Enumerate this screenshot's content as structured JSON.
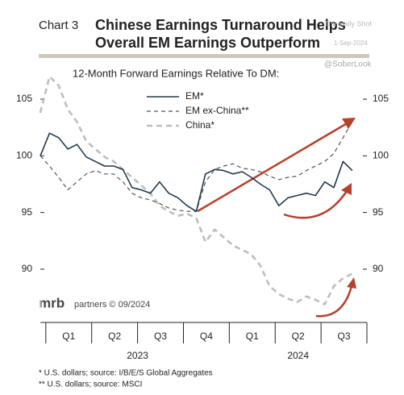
{
  "chart_data": {
    "type": "line",
    "chart_label": "Chart 3",
    "title": "Chinese Earnings Turnaround Helps",
    "title_line2": "Overall EM Earnings Outperform",
    "subtitle": "12-Month Forward Earnings Relative To DM:",
    "watermarks": [
      "The Daily Shot",
      "1-Sep-2024",
      "@SoberLook"
    ],
    "logo": "mrb",
    "logo_text": "partners © 09/2024",
    "footnotes": [
      "*  U.S. dollars; source: I/B/E/S Global Aggregates",
      "** U.S. dollars; source: MSCI"
    ],
    "x": [
      -0.12,
      0.08,
      0.28,
      0.48,
      0.68,
      0.88,
      1.08,
      1.28,
      1.48,
      1.68,
      1.88,
      2.08,
      2.28,
      2.48,
      2.68,
      2.88,
      3.08,
      3.28,
      3.48,
      3.68,
      3.88,
      4.08,
      4.28,
      4.48,
      4.68,
      4.88,
      5.08,
      5.28,
      5.48,
      5.68,
      5.88,
      6.08,
      6.28,
      6.48,
      6.68
    ],
    "xlim": [
      -0.12,
      7.0
    ],
    "xticks": [
      {
        "value": 0.5,
        "label": "Q1"
      },
      {
        "value": 1.5,
        "label": "Q2"
      },
      {
        "value": 2.5,
        "label": "Q3"
      },
      {
        "value": 3.5,
        "label": "Q4"
      },
      {
        "value": 4.5,
        "label": "Q1"
      },
      {
        "value": 5.5,
        "label": "Q2"
      },
      {
        "value": 6.5,
        "label": "Q3"
      }
    ],
    "x_groups": [
      {
        "value": 2,
        "label": "2023"
      },
      {
        "value": 5.5,
        "label": "2024"
      }
    ],
    "ylim": [
      85.3,
      108.2
    ],
    "yticks": [
      90,
      95,
      100,
      105
    ],
    "series": [
      {
        "name": "EM*",
        "color": "#1f3a4d",
        "dash": "none",
        "width": 1.6,
        "values": [
          100,
          102,
          101.6,
          100.6,
          101,
          99.9,
          99.5,
          99.1,
          99.1,
          98.8,
          97.2,
          97,
          96.7,
          97.7,
          96.7,
          96.3,
          95.6,
          95.1,
          98.4,
          98.8,
          98.7,
          98.4,
          98.6,
          98.1,
          97.5,
          97,
          95.6,
          96.3,
          96.5,
          96.7,
          96.5,
          97.7,
          97.2,
          99.5,
          98.7
        ]
      },
      {
        "name": "EM ex-China**",
        "color": "#555555",
        "dash": "5 4",
        "width": 1.2,
        "values": [
          100,
          99.1,
          98.1,
          97,
          97.7,
          98.4,
          98.7,
          98.4,
          98.4,
          97.7,
          96.7,
          96.3,
          96.1,
          95.8,
          95.4,
          95.2,
          95.1,
          95.1,
          97.7,
          98.8,
          99.1,
          99.3,
          98.9,
          98.8,
          98.6,
          98.2,
          97.9,
          98.1,
          98.2,
          98.7,
          99.1,
          99.5,
          100.2,
          101.6,
          103
        ]
      },
      {
        "name": "China*",
        "color": "#bdbdbd",
        "dash": "7 5",
        "width": 2.6,
        "values": [
          103.8,
          107,
          106.2,
          104.1,
          103,
          101.3,
          100.6,
          99.9,
          99.5,
          98.8,
          98.1,
          97.4,
          96.7,
          95.6,
          95.1,
          94.7,
          94.9,
          94.5,
          92.4,
          93.5,
          92.8,
          92.1,
          91.7,
          91.3,
          90.3,
          88.5,
          87.8,
          87.4,
          87.1,
          87.6,
          87.3,
          86.9,
          88.5,
          89.2,
          89.6
        ]
      }
    ]
  }
}
